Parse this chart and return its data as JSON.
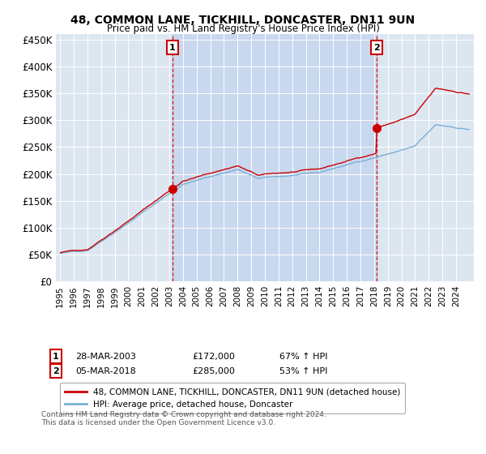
{
  "title1": "48, COMMON LANE, TICKHILL, DONCASTER, DN11 9UN",
  "title2": "Price paid vs. HM Land Registry's House Price Index (HPI)",
  "legend_line1": "48, COMMON LANE, TICKHILL, DONCASTER, DN11 9UN (detached house)",
  "legend_line2": "HPI: Average price, detached house, Doncaster",
  "sale1_date": "28-MAR-2003",
  "sale1_price": "£172,000",
  "sale1_hpi": "67% ↑ HPI",
  "sale2_date": "05-MAR-2018",
  "sale2_price": "£285,000",
  "sale2_hpi": "53% ↑ HPI",
  "footer": "Contains HM Land Registry data © Crown copyright and database right 2024.\nThis data is licensed under the Open Government Licence v3.0.",
  "plot_bg": "#dce6f1",
  "highlight_bg": "#c8d8ee",
  "red_color": "#cc0000",
  "blue_color": "#7aafd4",
  "sale1_x": 2003.23,
  "sale2_x": 2018.17,
  "ylim_min": 0,
  "ylim_max": 460000,
  "xlim_min": 1994.7,
  "xlim_max": 2025.3
}
